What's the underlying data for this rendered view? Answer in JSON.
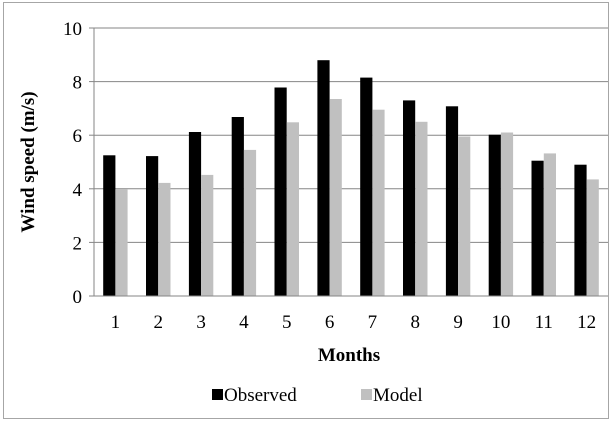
{
  "chart_data": {
    "type": "bar",
    "categories": [
      "1",
      "2",
      "3",
      "4",
      "5",
      "6",
      "7",
      "8",
      "9",
      "10",
      "11",
      "12"
    ],
    "series": [
      {
        "name": "Observed",
        "color": "#000000",
        "values": [
          5.25,
          5.22,
          6.12,
          6.68,
          7.78,
          8.8,
          8.15,
          7.3,
          7.08,
          6.02,
          5.05,
          4.9
        ]
      },
      {
        "name": "Model",
        "color": "#c0c0c0",
        "values": [
          3.98,
          4.22,
          4.52,
          5.45,
          6.48,
          7.35,
          6.95,
          6.5,
          5.95,
          6.1,
          5.32,
          4.35
        ]
      }
    ],
    "title": "",
    "xlabel": "Months",
    "ylabel": "Wind speed (m/s)",
    "ylim": [
      0,
      10
    ],
    "yticks": [
      "0",
      "2",
      "4",
      "6",
      "8",
      "10"
    ],
    "grid": true,
    "legend_position": "bottom"
  }
}
